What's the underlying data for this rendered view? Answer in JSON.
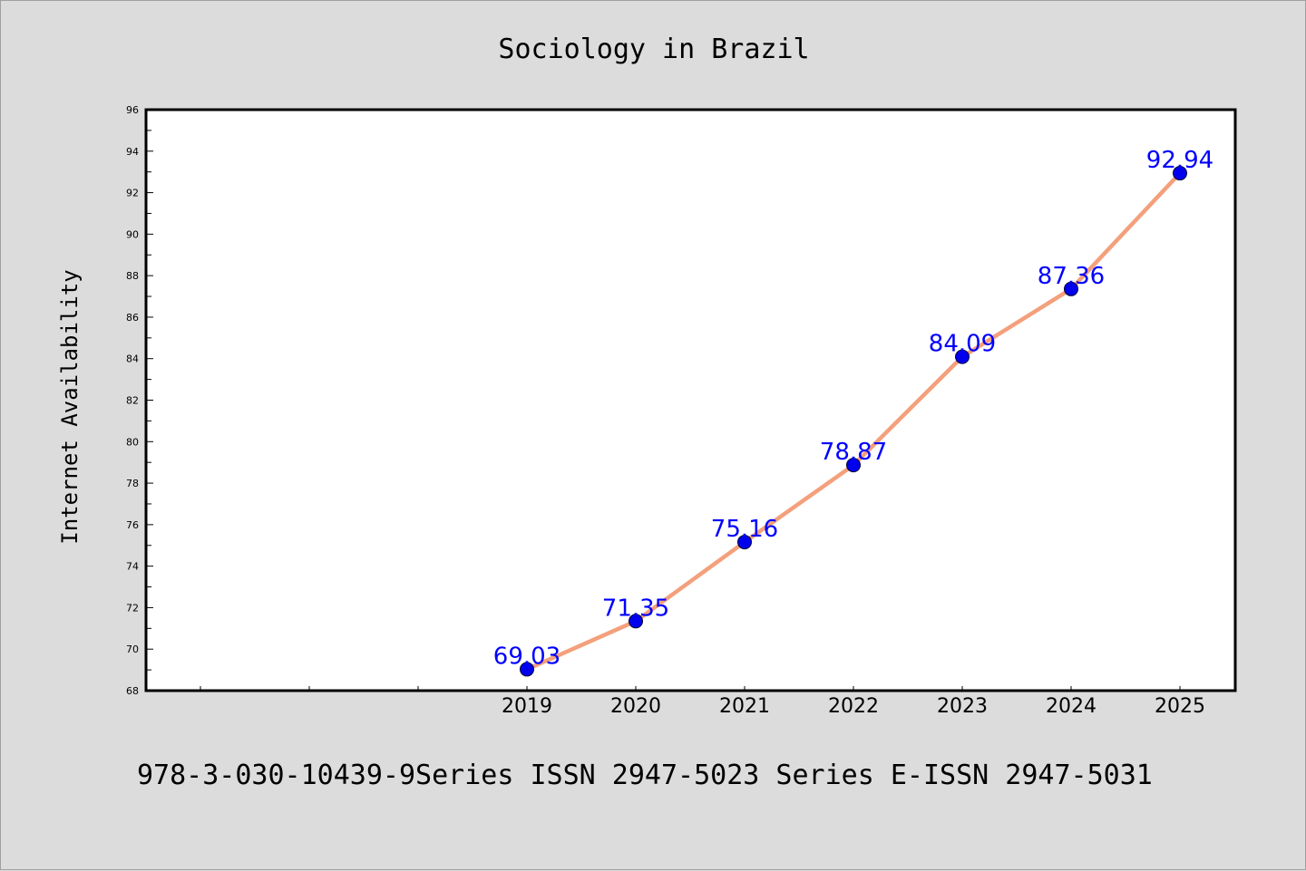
{
  "chart_data": {
    "type": "line",
    "title": "Sociology in Brazil",
    "xlabel": "",
    "ylabel": "Internet Availability",
    "categories": [
      "2019",
      "2020",
      "2021",
      "2022",
      "2023",
      "2024",
      "2025"
    ],
    "series": [
      {
        "values": [
          69.03,
          71.35,
          75.16,
          78.87,
          84.09,
          87.36,
          92.94
        ],
        "labels": [
          "69.03",
          "71.35",
          "75.16",
          "78.87",
          "84.09",
          "87.36",
          "92.94"
        ]
      }
    ],
    "ylim": [
      68,
      96
    ],
    "yticks": [
      "68",
      "70",
      "72",
      "74",
      "76",
      "78",
      "80",
      "82",
      "84",
      "86",
      "88",
      "90",
      "92",
      "94",
      "96"
    ],
    "grid": false,
    "legend": "none",
    "colors": {
      "line": "#f4a07c",
      "marker": "#0000ee",
      "data_label": "#0000ff",
      "background": "#dcdcdc",
      "plot_background": "#ffffff"
    }
  },
  "footer": {
    "text": "978-3-030-10439-9Series ISSN 2947-5023 Series E-ISSN 2947-5031"
  }
}
